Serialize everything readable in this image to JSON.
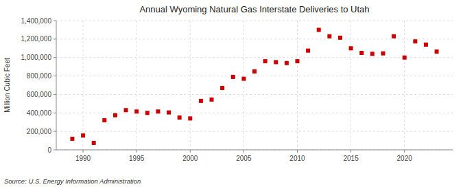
{
  "chart_data": {
    "type": "scatter",
    "title": "Annual Wyoming Natural Gas Interstate Deliveries to Utah",
    "ylabel": "Million Cubic Feet",
    "source": "Source: U.S. Energy Information Administration",
    "x": [
      1989,
      1990,
      1991,
      1992,
      1993,
      1994,
      1995,
      1996,
      1997,
      1998,
      1999,
      2000,
      2001,
      2002,
      2003,
      2004,
      2005,
      2006,
      2007,
      2008,
      2009,
      2010,
      2011,
      2012,
      2013,
      2014,
      2015,
      2016,
      2017,
      2018,
      2019,
      2020,
      2021,
      2022,
      2023
    ],
    "values": [
      120000,
      155000,
      75000,
      320000,
      375000,
      430000,
      415000,
      400000,
      415000,
      405000,
      350000,
      340000,
      530000,
      545000,
      670000,
      790000,
      770000,
      850000,
      960000,
      950000,
      940000,
      960000,
      1075000,
      1300000,
      1230000,
      1215000,
      1100000,
      1050000,
      1040000,
      1045000,
      1230000,
      1000000,
      1175000,
      1140000,
      1065000
    ],
    "color": "#cc0000",
    "marker": "square",
    "grid": true,
    "xlim": [
      1987.5,
      2024.5
    ],
    "ylim": [
      0,
      1400000
    ],
    "xticks": [
      1990,
      1995,
      2000,
      2005,
      2010,
      2015,
      2020
    ],
    "yticks": [
      0,
      {
        "value": 200000,
        "label": "200,000"
      },
      {
        "value": 400000,
        "label": "400,000"
      },
      {
        "value": 600000,
        "label": "600,000"
      },
      {
        "value": 800000,
        "label": "800,000"
      },
      {
        "value": 1000000,
        "label": "1,000,000"
      },
      {
        "value": 1200000,
        "label": "1,200,000"
      },
      {
        "value": 1400000,
        "label": "1,400,000"
      }
    ]
  }
}
